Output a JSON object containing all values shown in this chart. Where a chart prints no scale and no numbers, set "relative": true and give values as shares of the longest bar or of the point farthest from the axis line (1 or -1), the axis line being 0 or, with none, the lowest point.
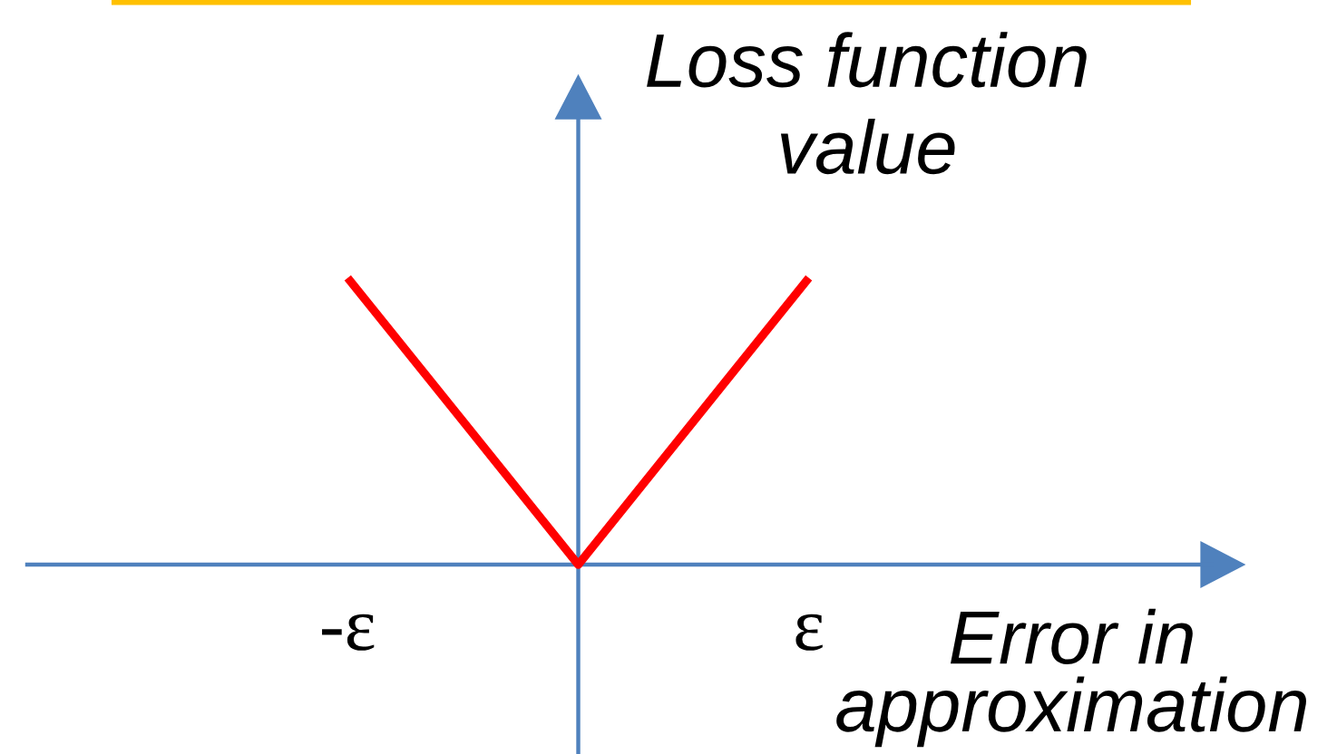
{
  "chart_data": {
    "type": "line",
    "xlabel": "Error in\napproximation",
    "ylabel": "Loss function\nvalue",
    "categories": [
      "-ε",
      null,
      "ε"
    ],
    "series": [
      {
        "color": "#ff0000",
        "values": [
          1,
          0,
          1
        ]
      }
    ],
    "relative": true,
    "line_style": "solid"
  }
}
